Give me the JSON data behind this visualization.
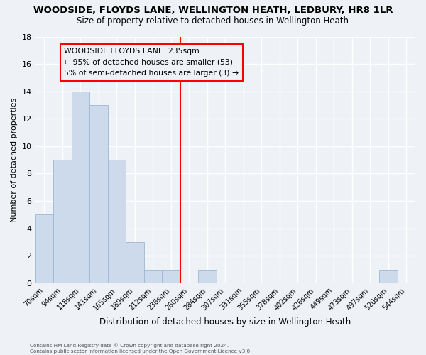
{
  "title": "WOODSIDE, FLOYDS LANE, WELLINGTON HEATH, LEDBURY, HR8 1LR",
  "subtitle": "Size of property relative to detached houses in Wellington Heath",
  "xlabel": "Distribution of detached houses by size in Wellington Heath",
  "ylabel": "Number of detached properties",
  "footnote1": "Contains HM Land Registry data © Crown copyright and database right 2024.",
  "footnote2": "Contains public sector information licensed under the Open Government Licence v3.0.",
  "bin_labels": [
    "70sqm",
    "94sqm",
    "118sqm",
    "141sqm",
    "165sqm",
    "189sqm",
    "212sqm",
    "236sqm",
    "260sqm",
    "284sqm",
    "307sqm",
    "331sqm",
    "355sqm",
    "378sqm",
    "402sqm",
    "426sqm",
    "449sqm",
    "473sqm",
    "497sqm",
    "520sqm",
    "544sqm"
  ],
  "bar_heights": [
    5,
    9,
    14,
    13,
    9,
    3,
    1,
    1,
    0,
    1,
    0,
    0,
    0,
    0,
    0,
    0,
    0,
    0,
    0,
    1,
    0
  ],
  "bar_color": "#ccdaeb",
  "bar_edge_color": "#9bb8d4",
  "vline_x": 7.5,
  "vline_color": "red",
  "annotation_title": "WOODSIDE FLOYDS LANE: 235sqm",
  "annotation_line1": "← 95% of detached houses are smaller (53)",
  "annotation_line2": "5% of semi-detached houses are larger (3) →",
  "ylim": [
    0,
    18
  ],
  "yticks": [
    0,
    2,
    4,
    6,
    8,
    10,
    12,
    14,
    16,
    18
  ],
  "background_color": "#eef2f7",
  "grid_color": "#ffffff",
  "title_fontsize": 9.5,
  "subtitle_fontsize": 8.5
}
